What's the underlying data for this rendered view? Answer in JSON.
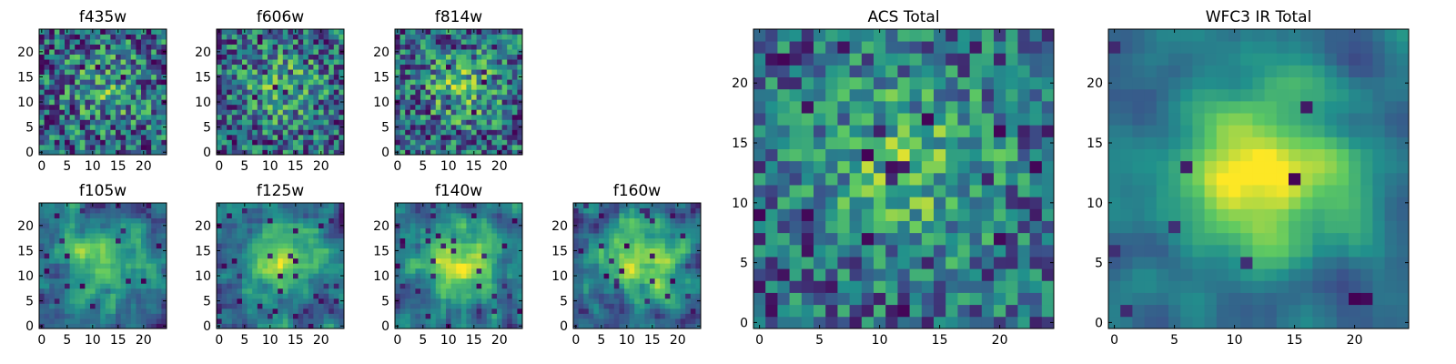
{
  "colormap": [
    "#440154",
    "#3b528b",
    "#21918c",
    "#5ec962",
    "#fde725"
  ],
  "chart_data": [
    {
      "type": "heatmap",
      "title": "f435w",
      "grid_size": 25,
      "xticks": [
        0,
        5,
        10,
        15,
        20
      ],
      "yticks": [
        0,
        5,
        10,
        15,
        20
      ],
      "blob": 0.25,
      "noise": 0.75,
      "dark": 0.05,
      "smooth": 0,
      "seed": 11
    },
    {
      "type": "heatmap",
      "title": "f606w",
      "grid_size": 25,
      "xticks": [
        0,
        5,
        10,
        15,
        20
      ],
      "yticks": [
        0,
        5,
        10,
        15,
        20
      ],
      "blob": 0.3,
      "noise": 0.7,
      "dark": 0.05,
      "smooth": 0,
      "seed": 23
    },
    {
      "type": "heatmap",
      "title": "f814w",
      "grid_size": 25,
      "xticks": [
        0,
        5,
        10,
        15,
        20
      ],
      "yticks": [
        0,
        5,
        10,
        15,
        20
      ],
      "blob": 0.35,
      "noise": 0.7,
      "dark": 0.06,
      "smooth": 0,
      "seed": 37
    },
    {
      "type": "heatmap",
      "title": "f105w",
      "grid_size": 25,
      "xticks": [
        0,
        5,
        10,
        15,
        20
      ],
      "yticks": [
        0,
        5,
        10,
        15,
        20
      ],
      "blob": 0.45,
      "noise": 0.6,
      "dark": 0.04,
      "smooth": 1,
      "seed": 41
    },
    {
      "type": "heatmap",
      "title": "f125w",
      "grid_size": 25,
      "xticks": [
        0,
        5,
        10,
        15,
        20
      ],
      "yticks": [
        0,
        5,
        10,
        15,
        20
      ],
      "blob": 0.5,
      "noise": 0.6,
      "dark": 0.04,
      "smooth": 1,
      "seed": 53
    },
    {
      "type": "heatmap",
      "title": "f140w",
      "grid_size": 25,
      "xticks": [
        0,
        5,
        10,
        15,
        20
      ],
      "yticks": [
        0,
        5,
        10,
        15,
        20
      ],
      "blob": 0.55,
      "noise": 0.55,
      "dark": 0.04,
      "smooth": 1,
      "seed": 67
    },
    {
      "type": "heatmap",
      "title": "f160w",
      "grid_size": 25,
      "xticks": [
        0,
        5,
        10,
        15,
        20
      ],
      "yticks": [
        0,
        5,
        10,
        15,
        20
      ],
      "blob": 0.6,
      "noise": 0.55,
      "dark": 0.04,
      "smooth": 1,
      "seed": 79
    },
    {
      "type": "heatmap",
      "title": "ACS Total",
      "grid_size": 25,
      "xticks": [
        0,
        5,
        10,
        15,
        20
      ],
      "yticks": [
        0,
        5,
        10,
        15,
        20
      ],
      "blob": 0.4,
      "noise": 0.6,
      "dark": 0.03,
      "smooth": 0,
      "seed": 83
    },
    {
      "type": "heatmap",
      "title": "WFC3 IR Total",
      "grid_size": 25,
      "xticks": [
        0,
        5,
        10,
        15,
        20
      ],
      "yticks": [
        0,
        5,
        10,
        15,
        20
      ],
      "blob": 0.75,
      "noise": 0.35,
      "dark": 0.02,
      "smooth": 2,
      "seed": 97
    }
  ]
}
